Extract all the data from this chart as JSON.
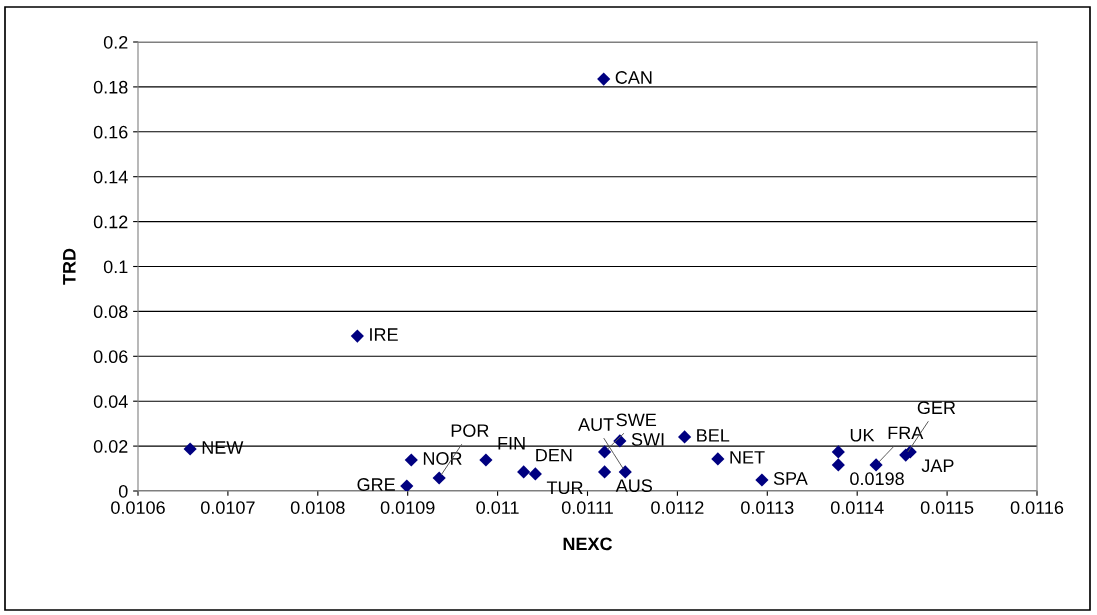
{
  "chart_data": {
    "type": "scatter",
    "xlabel": "NEXC",
    "ylabel": "TRD",
    "marker": "diamond",
    "grid": "y",
    "legend": false,
    "xlim": [
      0.0106,
      0.0116
    ],
    "xticks": [
      0.0106,
      0.0107,
      0.0108,
      0.0109,
      0.011,
      0.0111,
      0.0112,
      0.0113,
      0.0114,
      0.0115,
      0.0116
    ],
    "ylim": [
      0,
      0.2
    ],
    "yticks": [
      0,
      0.02,
      0.04,
      0.06,
      0.08,
      0.1,
      0.12,
      0.14,
      0.16,
      0.18,
      0.2
    ],
    "series": [
      {
        "color": "#000080",
        "x": [
          0.011118,
          0.010844,
          0.010658,
          0.010904,
          0.010899,
          0.010935,
          0.010987,
          0.011029,
          0.011042,
          0.011119,
          0.011136,
          0.011119,
          0.011142,
          0.011208,
          0.011245,
          0.011294,
          0.011379,
          0.011379,
          0.011421,
          0.011459,
          0.011454
        ],
        "values": [
          0.1835,
          0.069,
          0.0187,
          0.0138,
          0.0022,
          0.0058,
          0.0138,
          0.0085,
          0.0076,
          0.0174,
          0.0223,
          0.0085,
          0.0085,
          0.0241,
          0.0143,
          0.0049,
          0.0174,
          0.0116,
          0.0116,
          0.0174,
          0.016
        ]
      }
    ],
    "annotations": [
      {
        "text": "CAN",
        "x": 0.011118,
        "y": 0.1835
      },
      {
        "text": "IRE",
        "x": 0.010844,
        "y": 0.069
      },
      {
        "text": "NEW",
        "x": 0.010658,
        "y": 0.0187
      },
      {
        "text": "NOR",
        "x": 0.010904,
        "y": 0.0138
      },
      {
        "text": "GRE",
        "x": 0.010899,
        "y": 0.0022
      },
      {
        "text": "POR",
        "x": 0.010935,
        "y": 0.0058
      },
      {
        "text": "FIN",
        "x": 0.010987,
        "y": 0.0138
      },
      {
        "text": "DEN",
        "x": 0.011029,
        "y": 0.0085
      },
      {
        "text": "TUR",
        "x": 0.011042,
        "y": 0.0076
      },
      {
        "text": "SWE",
        "x": 0.011119,
        "y": 0.0174
      },
      {
        "text": "SWI",
        "x": 0.011136,
        "y": 0.0223
      },
      {
        "text": "AUS",
        "x": 0.011119,
        "y": 0.0085
      },
      {
        "text": "AUT",
        "x": 0.011142,
        "y": 0.0085
      },
      {
        "text": "BEL",
        "x": 0.011208,
        "y": 0.0241
      },
      {
        "text": "NET",
        "x": 0.011245,
        "y": 0.0143
      },
      {
        "text": "SPA",
        "x": 0.011294,
        "y": 0.0049
      },
      {
        "text": "UK",
        "x": 0.011379,
        "y": 0.0174
      },
      {
        "text": "0.0198",
        "x": 0.011379,
        "y": 0.0116
      },
      {
        "text": "FRA",
        "x": 0.011421,
        "y": 0.0116
      },
      {
        "text": "JAP",
        "x": 0.011459,
        "y": 0.0174
      },
      {
        "text": "GER",
        "x": 0.011454,
        "y": 0.016
      }
    ]
  }
}
